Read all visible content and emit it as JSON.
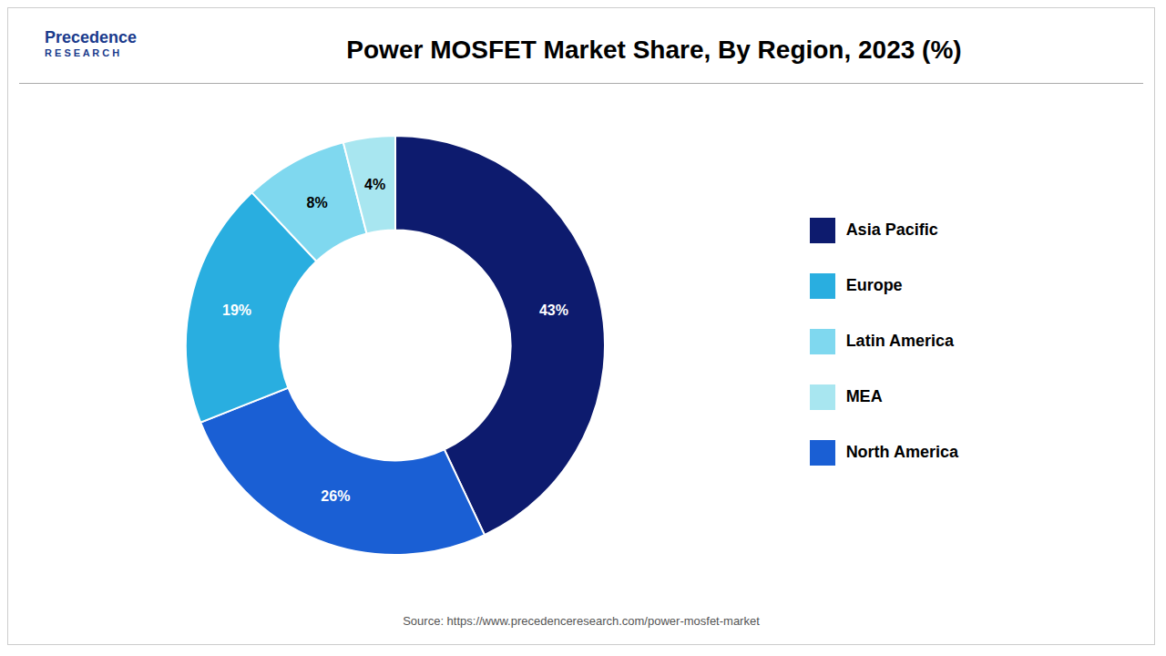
{
  "chart_data": {
    "type": "pie",
    "title": "Power MOSFET Market Share, By Region, 2023 (%)",
    "categories": [
      "Asia Pacific",
      "North America",
      "Europe",
      "Latin America",
      "MEA"
    ],
    "values": [
      43,
      26,
      19,
      8,
      4
    ],
    "value_labels": [
      "43%",
      "26%",
      "19%",
      "8%",
      "4%"
    ],
    "colors": [
      "#0d1b6e",
      "#1a5fd4",
      "#29aee0",
      "#7fd8ef",
      "#a8e6f0"
    ],
    "data_labels": true,
    "legend": "right",
    "annotations": [
      "Precedence",
      "R E S E A R C H",
      "Source: https://www.precedenceresearch.com/power-mosfet-market"
    ]
  }
}
